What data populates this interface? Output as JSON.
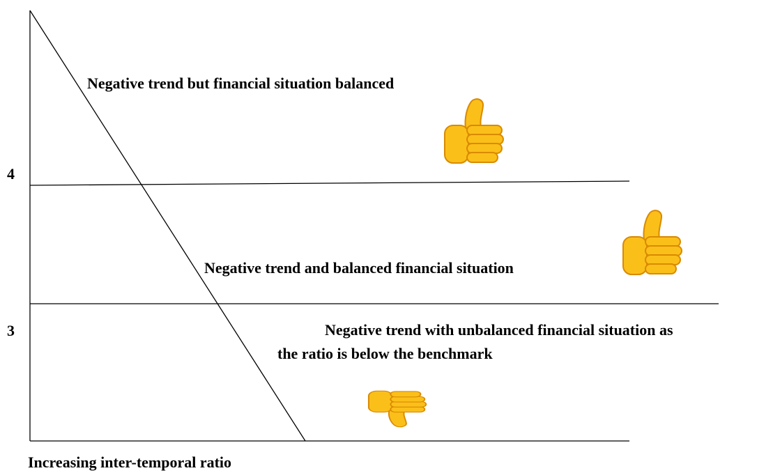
{
  "axis": {
    "y_labels": [
      "4",
      "3"
    ],
    "x_label": "Increasing inter-temporal ratio"
  },
  "regions": [
    {
      "text": [
        "Negative trend but financial situation balanced"
      ]
    },
    {
      "text": [
        "Negative trend and balanced financial situation"
      ]
    },
    {
      "text": [
        "Negative trend with unbalanced financial situation as",
        "the ratio is below the benchmark"
      ]
    }
  ]
}
